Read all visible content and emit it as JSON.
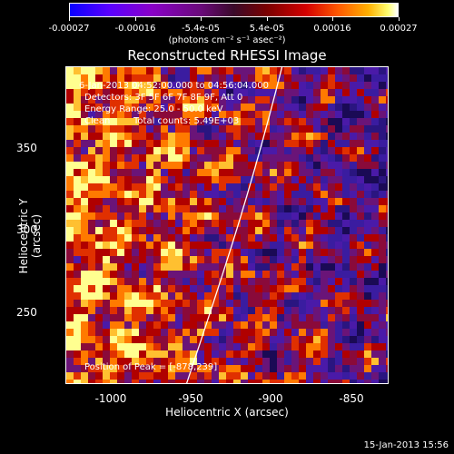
{
  "colorbar": {
    "ticks": [
      "-0.00027",
      "-0.00016",
      "-5.4e-05",
      "5.4e-05",
      "0.00016",
      "0.00027"
    ],
    "units": "(photons cm⁻² s⁻¹ asec⁻²)",
    "colors": [
      "#0a00ff",
      "#5a00ff",
      "#8a00c8",
      "#3a0a2a",
      "#d40000",
      "#ff5a00",
      "#ffb000",
      "#ffffff"
    ]
  },
  "title": "Reconstructed RHESSI Image",
  "info": {
    "time_range": "6-Jan-2013 04:52:00.000 to 04:56:04.000",
    "detectors": "Detectors: 3F 5F 6F 7F 8F 9F, Att 0",
    "energy": "Energy Range: 25.0 - 50.0 keV",
    "method": "Clean",
    "counts": "Total counts: 5.49E+03",
    "peak": "Position of Peak = [-878,239]"
  },
  "axes": {
    "xlabel": "Heliocentric X (arcsec)",
    "ylabel": "Heliocentric Y (arcsec)",
    "x_ticks": [
      "-1000",
      "-950",
      "-900",
      "-850"
    ],
    "y_ticks": [
      "350",
      "300",
      "250"
    ],
    "x_range": [
      -1025,
      -825
    ],
    "y_range": [
      203,
      400
    ]
  },
  "footer": {
    "date": "15-Jan-2013 15:56"
  }
}
